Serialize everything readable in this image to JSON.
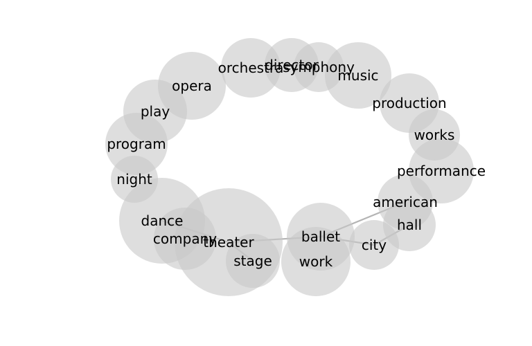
{
  "colors": {
    "bubble": "#c8c8c8",
    "edge": "#b4b4b4",
    "label": "#000000"
  },
  "nodes": [
    {
      "id": "orchestra",
      "label": "orchestra"
    },
    {
      "id": "director",
      "label": "director"
    },
    {
      "id": "symphony",
      "label": "symphony"
    },
    {
      "id": "music",
      "label": "music"
    },
    {
      "id": "opera",
      "label": "opera"
    },
    {
      "id": "production",
      "label": "production"
    },
    {
      "id": "play",
      "label": "play"
    },
    {
      "id": "works",
      "label": "works"
    },
    {
      "id": "program",
      "label": "program"
    },
    {
      "id": "performance",
      "label": "performance"
    },
    {
      "id": "night",
      "label": "night"
    },
    {
      "id": "american",
      "label": "american"
    },
    {
      "id": "dance",
      "label": "dance"
    },
    {
      "id": "hall",
      "label": "hall"
    },
    {
      "id": "company",
      "label": "company"
    },
    {
      "id": "theater",
      "label": "theater"
    },
    {
      "id": "ballet",
      "label": "ballet"
    },
    {
      "id": "city",
      "label": "city"
    },
    {
      "id": "stage",
      "label": "stage"
    },
    {
      "id": "work",
      "label": "work"
    }
  ],
  "edges": [
    [
      "dance",
      "theater"
    ],
    [
      "theater",
      "ballet"
    ],
    [
      "ballet",
      "american"
    ],
    [
      "ballet",
      "city"
    ],
    [
      "city",
      "hall"
    ],
    [
      "theater",
      "stage"
    ]
  ]
}
